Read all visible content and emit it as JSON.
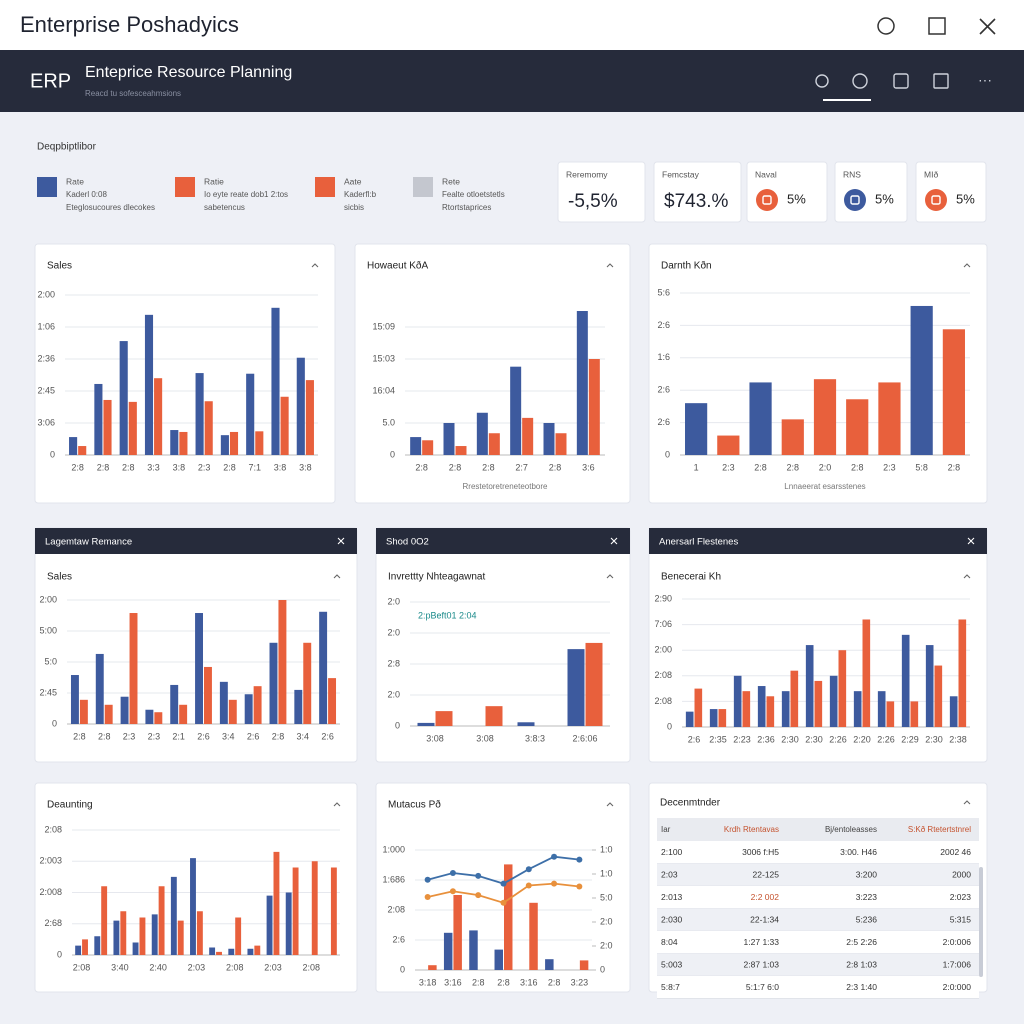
{
  "header": {
    "title": "Enterprise Poshadyics",
    "nav_logo": "ERP",
    "nav_title": "Enteprice Resource Planning",
    "nav_subtitle": "Reacd tu sofesceahmsions"
  },
  "legend": {
    "title": "Deqpbiptlibor",
    "items": [
      {
        "color": "#3d5a9e",
        "lines": [
          "Rate",
          "Kaderl 0:08",
          "Eteglosucoures dlecokes"
        ]
      },
      {
        "color": "#e8603c",
        "lines": [
          "Ratie",
          "Io eyte reate dob1 2:tos",
          "sabetencus"
        ]
      },
      {
        "color": "#e8603c",
        "lines": [
          "Aate",
          "Kaderfl:b",
          "sicbis"
        ]
      },
      {
        "color": "#c4c7cf",
        "lines": [
          "Rete",
          "Fealte otloetstetls",
          "Rtortstaprices"
        ]
      }
    ]
  },
  "kpis": [
    {
      "label": "Reremomy",
      "value": "-5,5%"
    },
    {
      "label": "Femcstay",
      "value": "$743.%"
    },
    {
      "label": "Naval",
      "value": "5%",
      "icon_color": "#e8603c"
    },
    {
      "label": "RNS",
      "value": "5%",
      "icon_color": "#3d5a9e"
    },
    {
      "label": "MIð",
      "value": "5%",
      "icon_color": "#e8603c"
    }
  ],
  "chart_data": [
    {
      "type": "bar",
      "title": "Sales",
      "grid": true,
      "ylim": [
        0,
        250
      ],
      "yticks": [
        0,
        {
          "value": 50,
          "label": "3:06"
        },
        {
          "value": 100,
          "label": "2:45"
        },
        {
          "value": 150,
          "label": "2:36"
        },
        {
          "value": 200,
          "label": "1:06"
        },
        {
          "value": 250,
          "label": "2:00"
        }
      ],
      "categories": [
        "2:8",
        "2:8",
        "2:8",
        "3:3",
        "3:8",
        "2:3",
        "2:8",
        "7:1",
        "3:8",
        "3:8"
      ],
      "series": [
        {
          "color": "#3d5a9e",
          "values": [
            28,
            111,
            178,
            219,
            39,
            128,
            31,
            127,
            230,
            152
          ]
        },
        {
          "color": "#e8603c",
          "values": [
            14,
            86,
            83,
            120,
            36,
            84,
            36,
            37,
            91,
            117
          ]
        }
      ]
    },
    {
      "type": "bar",
      "title": "Howaeut KðA",
      "xlabel": "Rrestetoretreneteotbore",
      "grid": true,
      "ylim": [
        0,
        250
      ],
      "yticks": [
        0,
        {
          "value": 50,
          "label": "5.0"
        },
        {
          "value": 100,
          "label": "16:04"
        },
        {
          "value": 150,
          "label": "15:03"
        },
        {
          "value": 200,
          "label": "15:09"
        }
      ],
      "categories": [
        "2:8",
        "2:8",
        "2:8",
        "2:7",
        "2:8",
        "3:6"
      ],
      "series": [
        {
          "color": "#3d5a9e",
          "values": [
            28,
            50,
            66,
            138,
            50,
            225
          ]
        },
        {
          "color": "#e8603c",
          "values": [
            23,
            14,
            34,
            58,
            34,
            150
          ]
        }
      ]
    },
    {
      "type": "bar",
      "title": "Darnth Kðn",
      "xlabel": "Lnnaeerat esarsstenes",
      "grid": true,
      "ylim": [
        0,
        250
      ],
      "yticks": [
        0,
        {
          "value": 50,
          "label": "2:6"
        },
        {
          "value": 100,
          "label": "2:6"
        },
        {
          "value": 150,
          "label": "1:6"
        },
        {
          "value": 200,
          "label": "2:6"
        },
        {
          "value": 250,
          "label": "5:6"
        }
      ],
      "categories": [
        "1",
        "2:3",
        "2:8",
        "2:8",
        "2:0",
        "2:8",
        "2:3",
        "5:8",
        "2:8"
      ],
      "series": [
        {
          "colors": [
            "#3d5a9e",
            "#e8603c",
            "#3d5a9e",
            "#e8603c",
            "#e8603c",
            "#e8603c",
            "#e8603c",
            "#3d5a9e",
            "#e8603c"
          ],
          "values": [
            80,
            30,
            112,
            55,
            117,
            86,
            112,
            230,
            194
          ]
        }
      ]
    },
    {
      "type": "bar",
      "header": "Lagemtaw Remance",
      "title": "Sales",
      "grid": true,
      "ylim": [
        0,
        200
      ],
      "yticks": [
        0,
        {
          "value": 50,
          "label": "2:45"
        },
        {
          "value": 100,
          "label": "5:0"
        },
        {
          "value": 150,
          "label": "5:00"
        },
        {
          "value": 200,
          "label": "2:00"
        }
      ],
      "categories": [
        "2:8",
        "2:8",
        "2:3",
        "2:3",
        "2:1",
        "2:6",
        "3:4",
        "2:6",
        "2:8",
        "3:4",
        "2:6"
      ],
      "series": [
        {
          "color": "#3d5a9e",
          "values": [
            79,
            113,
            44,
            23,
            63,
            179,
            68,
            48,
            131,
            55,
            181
          ]
        },
        {
          "color": "#e8603c",
          "values": [
            39,
            31,
            179,
            19,
            31,
            92,
            39,
            61,
            200,
            131,
            74
          ]
        }
      ]
    },
    {
      "type": "bar",
      "header": "Shod 0O2",
      "title": "Invrettty Nhteagawnat",
      "annotation": "2:pBeft01 2:04",
      "grid": true,
      "ylim": [
        0,
        200
      ],
      "yticks": [
        0,
        {
          "value": 50,
          "label": "2:0"
        },
        {
          "value": 100,
          "label": "2:8"
        },
        {
          "value": 150,
          "label": "2:0"
        },
        {
          "value": 200,
          "label": "2:0"
        }
      ],
      "categories": [
        "3:08",
        "3:08",
        "3:8:3",
        "2:6:06"
      ],
      "series": [
        {
          "color": "#3d5a9e",
          "values": [
            5,
            0,
            6,
            124
          ]
        },
        {
          "color": "#e8603c",
          "values": [
            24,
            32,
            0,
            134
          ]
        }
      ]
    },
    {
      "type": "bar",
      "header": "Anersarl Flestenes",
      "title": "Benecerai Kh",
      "grid": true,
      "ylim": [
        0,
        250
      ],
      "yticks": [
        0,
        {
          "value": 50,
          "label": "2:08"
        },
        {
          "value": 100,
          "label": "2:08"
        },
        {
          "value": 150,
          "label": "2:00"
        },
        {
          "value": 200,
          "label": "7:06"
        },
        {
          "value": 250,
          "label": "2:90"
        }
      ],
      "categories": [
        "2:6",
        "2:35",
        "2:23",
        "2:36",
        "2:30",
        "2:30",
        "2:26",
        "2:20",
        "2:26",
        "2:29",
        "2:30",
        "2:38"
      ],
      "series": [
        {
          "color": "#3d5a9e",
          "values": [
            30,
            35,
            100,
            80,
            70,
            160,
            100,
            70,
            70,
            180,
            160,
            60
          ]
        },
        {
          "color": "#e8603c",
          "values": [
            75,
            35,
            70,
            60,
            110,
            90,
            150,
            210,
            50,
            50,
            120,
            210
          ]
        }
      ]
    },
    {
      "type": "bar",
      "title": "Deaunting",
      "grid": true,
      "ylim": [
        0,
        200
      ],
      "yticks": [
        0,
        {
          "value": 50,
          "label": "2:68"
        },
        {
          "value": 100,
          "label": "2:008"
        },
        {
          "value": 150,
          "label": "2:003"
        },
        {
          "value": 200,
          "label": "2:08"
        }
      ],
      "categories": [
        "2:08",
        null,
        "3:40",
        null,
        "2:40",
        null,
        "2:03",
        null,
        "2:08",
        null,
        "2:03",
        null,
        "2:08",
        null
      ],
      "series": [
        {
          "color": "#3d5a9e",
          "values": [
            15,
            30,
            55,
            20,
            65,
            125,
            155,
            12,
            10,
            10,
            95,
            100,
            0,
            0
          ]
        },
        {
          "color": "#e8603c",
          "values": [
            25,
            110,
            70,
            60,
            110,
            55,
            70,
            5,
            60,
            15,
            165,
            140,
            150,
            140
          ]
        }
      ]
    },
    {
      "type": "combo",
      "title": "Mutacus Pð",
      "grid": true,
      "ylim": [
        0,
        1000
      ],
      "y2lim": [
        0,
        1250
      ],
      "yticks": [
        0,
        {
          "value": 250,
          "label": "2:6"
        },
        {
          "value": 500,
          "label": "2:08"
        },
        {
          "value": 750,
          "label": "1:686"
        },
        {
          "value": 1000,
          "label": "1:000"
        }
      ],
      "y2ticks": [
        0,
        {
          "value": 250,
          "label": "2:0"
        },
        {
          "value": 500,
          "label": "2:0"
        },
        {
          "value": 750,
          "label": "5:0"
        },
        {
          "value": 1000,
          "label": "1:0"
        },
        {
          "value": 1250,
          "label": "1:0"
        }
      ],
      "categories": [
        "3:18",
        "3:16",
        "2:8",
        "2:8",
        "3:16",
        "2:8",
        "3:23"
      ],
      "series": [
        {
          "kind": "bar",
          "color": "#3d5a9e",
          "values": [
            0,
            310,
            330,
            170,
            0,
            90,
            0
          ]
        },
        {
          "kind": "bar",
          "color": "#e8603c",
          "values": [
            40,
            625,
            0,
            880,
            560,
            0,
            80
          ]
        },
        {
          "kind": "line",
          "axis": "y2",
          "color": "#3d6fa8",
          "values": [
            940,
            1010,
            980,
            900,
            1050,
            1180,
            1150
          ]
        },
        {
          "kind": "line",
          "axis": "y2",
          "color": "#e8903c",
          "values": [
            760,
            820,
            780,
            700,
            880,
            900,
            870
          ]
        }
      ]
    }
  ],
  "table": {
    "title": "Decenmtnder",
    "columns": [
      "Iar",
      "Krdh Rtentavas",
      "Bj/entoleasses",
      "S:Kð Rtetertstnrel"
    ],
    "rows": [
      [
        "2:100",
        "3006 f:H5",
        "3:00. H46",
        "2002 46"
      ],
      [
        "2:03",
        "22-125",
        "3:200",
        "2000"
      ],
      [
        "2:013",
        "2:2 002",
        "3:223",
        "2:023"
      ],
      [
        "2:030",
        "22-1:34",
        "5:236",
        "5:315"
      ],
      [
        "8:04",
        "1:27 1:33",
        "2:5 2:26",
        "2:0:006"
      ],
      [
        "5:003",
        "2:87 1:03",
        "2:8 1:03",
        "1:7:006"
      ],
      [
        "5:8:7",
        "5:1:7 6:0",
        "2:3 1:40",
        "2:0:000"
      ]
    ]
  }
}
